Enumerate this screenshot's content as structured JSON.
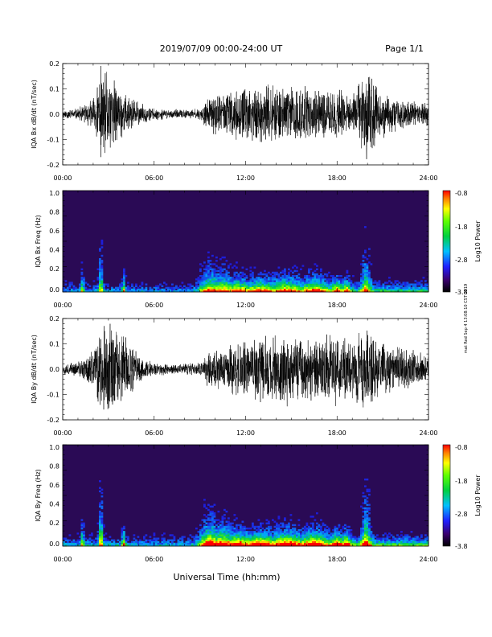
{
  "header": {
    "title": "2019/07/09  00:00-24:00 UT",
    "page": "Page 1/1"
  },
  "side_note": "mat Red Sep 4 13:08:10 CST 2019",
  "xlabel": "Universal Time (hh:mm)",
  "colors": {
    "trace": "#000000",
    "spectrogram_background": "#2a0a55"
  },
  "chart_data": [
    {
      "type": "line",
      "ylabel": "IQA Bx dB/dt (nT/sec)",
      "xlim": [
        0,
        24
      ],
      "ylim": [
        -0.2,
        0.2
      ],
      "xticks": [
        "00:00",
        "06:00",
        "12:00",
        "18:00",
        "24:00"
      ],
      "yticks": [
        "0.2",
        "0.1",
        "0.0",
        "-0.1",
        "-0.2"
      ],
      "envelope_hours": [
        0,
        1,
        2,
        2.5,
        3,
        4,
        5,
        6,
        7,
        8,
        9,
        9.5,
        10,
        11,
        12,
        13,
        14,
        15,
        16,
        17,
        18,
        19,
        20,
        21,
        22,
        23,
        24
      ],
      "envelope_amplitude": [
        0.02,
        0.025,
        0.07,
        0.2,
        0.18,
        0.1,
        0.05,
        0.025,
        0.02,
        0.02,
        0.025,
        0.07,
        0.09,
        0.1,
        0.11,
        0.13,
        0.12,
        0.13,
        0.12,
        0.1,
        0.11,
        0.08,
        0.2,
        0.1,
        0.07,
        0.06,
        0.05
      ]
    },
    {
      "type": "heatmap",
      "ylabel": "IQA Bx Freq (Hz)",
      "xlim": [
        0,
        24
      ],
      "ylim": [
        0,
        1.0
      ],
      "xticks": [
        "00:00",
        "06:00",
        "12:00",
        "18:00",
        "24:00"
      ],
      "yticks": [
        "1.0",
        "0.8",
        "0.6",
        "0.4",
        "0.2",
        "0.0"
      ],
      "colorbar": {
        "label": "Log10 Power",
        "range": [
          -3.8,
          -0.8
        ],
        "ticks": [
          "-0.8",
          "-1.8",
          "-2.8",
          "-3.8"
        ]
      }
    },
    {
      "type": "line",
      "ylabel": "IQA By dB/dt (nT/sec)",
      "xlim": [
        0,
        24
      ],
      "ylim": [
        -0.2,
        0.2
      ],
      "xticks": [
        "00:00",
        "06:00",
        "12:00",
        "18:00",
        "24:00"
      ],
      "yticks": [
        "0.2",
        "0.1",
        "0.0",
        "-0.1",
        "-0.2"
      ],
      "envelope_hours": [
        0,
        1,
        2,
        2.5,
        3,
        4,
        5,
        6,
        7,
        8,
        9,
        9.5,
        10,
        11,
        12,
        13,
        14,
        15,
        16,
        17,
        18,
        19,
        20,
        21,
        22,
        23,
        24
      ],
      "envelope_amplitude": [
        0.025,
        0.03,
        0.09,
        0.2,
        0.2,
        0.16,
        0.06,
        0.03,
        0.025,
        0.025,
        0.03,
        0.08,
        0.1,
        0.11,
        0.12,
        0.15,
        0.14,
        0.16,
        0.13,
        0.14,
        0.15,
        0.12,
        0.2,
        0.12,
        0.1,
        0.08,
        0.06
      ]
    },
    {
      "type": "heatmap",
      "ylabel": "IQA By Freq (Hz)",
      "xlim": [
        0,
        24
      ],
      "ylim": [
        0,
        1.0
      ],
      "xticks": [
        "00:00",
        "06:00",
        "12:00",
        "18:00",
        "24:00"
      ],
      "yticks": [
        "1.0",
        "0.8",
        "0.6",
        "0.4",
        "0.2",
        "0.0"
      ],
      "colorbar": {
        "label": "Log10 Power",
        "range": [
          -3.8,
          -0.8
        ],
        "ticks": [
          "-0.8",
          "-1.8",
          "-2.8",
          "-3.8"
        ]
      }
    }
  ]
}
